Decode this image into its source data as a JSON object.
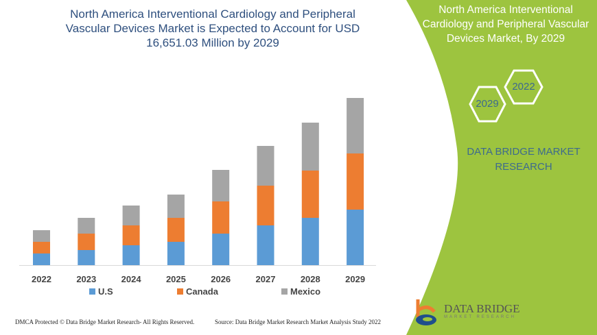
{
  "title": "North America Interventional Cardiology and Peripheral Vascular Devices Market is Expected to Account for USD 16,651.03 Million by 2029",
  "side_panel": {
    "title": "North America Interventional Cardiology and Peripheral Vascular Devices Market, By 2029",
    "hex_1": "2022",
    "hex_2": "2029",
    "brand": "DATA BRIDGE MARKET RESEARCH",
    "logo_text": "DATA BRIDGE",
    "logo_sub": "MARKET RESEARCH"
  },
  "footer": {
    "left": "DMCA Protected © Data Bridge Market Research- All Rights Reserved.",
    "right": "Source: Data Bridge Market Research Market Analysis Study 2022"
  },
  "colors": {
    "us": "#5b9bd5",
    "canada": "#ed7d31",
    "mexico": "#a5a5a5",
    "green": "#9dc43f"
  },
  "chart_data": {
    "type": "bar",
    "stacked": true,
    "title": "North America Interventional Cardiology and Peripheral Vascular Devices Market is Expected to Account for USD 16,651.03 Million by 2029",
    "categories": [
      "2022",
      "2023",
      "2024",
      "2025",
      "2026",
      "2027",
      "2028",
      "2029"
    ],
    "series": [
      {
        "name": "U.S",
        "values": [
          17,
          22,
          29,
          34,
          46,
          58,
          69,
          81
        ]
      },
      {
        "name": "Canada",
        "values": [
          17,
          24,
          29,
          35,
          47,
          58,
          69,
          82
        ]
      },
      {
        "name": "Mexico",
        "values": [
          17,
          23,
          29,
          34,
          46,
          58,
          70,
          81
        ]
      }
    ],
    "ylim": [
      0,
      250
    ],
    "yaxis_visible": false,
    "grid": false,
    "legend": "bottom",
    "units": "relative (unlabeled axis)"
  }
}
